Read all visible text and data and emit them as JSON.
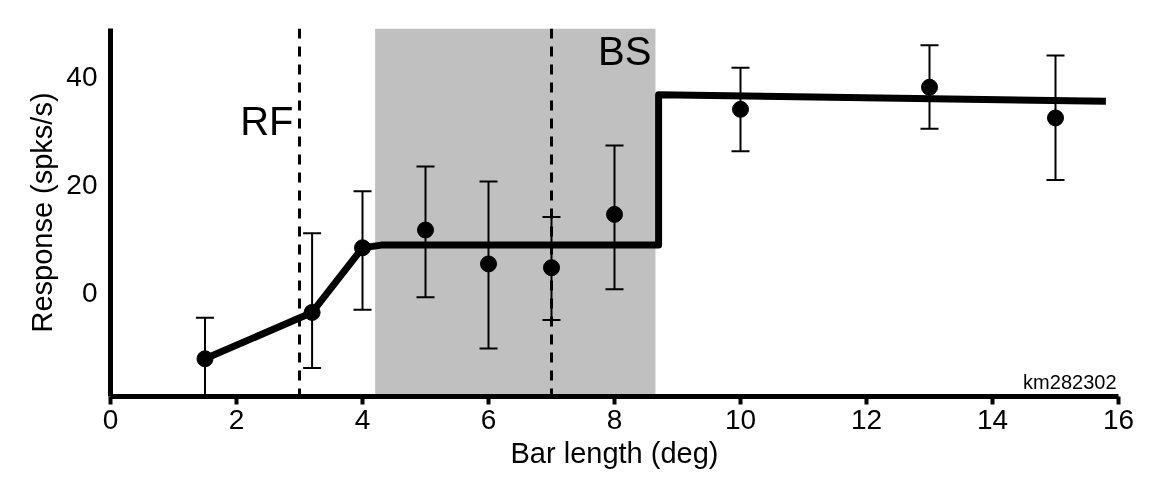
{
  "chart_data": {
    "type": "scatter",
    "xlabel": "Bar length (deg)",
    "ylabel": "Response (spks/s)",
    "xlim": [
      0,
      16
    ],
    "ylim": [
      -19.3,
      49
    ],
    "xticks": [
      0,
      2,
      4,
      6,
      8,
      10,
      12,
      14,
      16
    ],
    "yticks": [
      0,
      20,
      40
    ],
    "grid": false,
    "series": [
      {
        "color": "#000000",
        "marker": "circle",
        "x": [
          1.5,
          3.2,
          4,
          5,
          6,
          7,
          8,
          10,
          13,
          15
        ],
        "values": [
          -12.3,
          -3.7,
          8.3,
          11.6,
          5.3,
          4.6,
          14.5,
          34,
          38.1,
          32.4
        ],
        "errors": [
          [
            -19,
            -4.7
          ],
          [
            -14,
            11
          ],
          [
            -3.2,
            18.8
          ],
          [
            -0.9,
            23.4
          ],
          [
            -10.4,
            20.6
          ],
          [
            -5.1,
            14
          ],
          [
            0.6,
            27.3
          ],
          [
            26.2,
            41.7
          ],
          [
            30.4,
            45.9
          ],
          [
            20.9,
            44
          ]
        ]
      },
      {
        "type": "line",
        "color": "#000000",
        "line_style": "solid",
        "x": [
          1.5,
          3.2,
          4,
          4.3,
          8.7,
          8.7,
          15.8
        ],
        "values": [
          -12.3,
          -3.7,
          8.3,
          8.8,
          8.8,
          36.7,
          35.5
        ]
      }
    ],
    "bands": [
      {
        "axis": "x",
        "from": 4.2,
        "to": 8.65,
        "label": "BS",
        "color": "#c0c0c0"
      }
    ],
    "ref_lines": [
      {
        "axis": "x",
        "value": 3,
        "label": "RF",
        "color": "#000000",
        "line_style": "dashed"
      },
      {
        "axis": "x",
        "value": 7,
        "color": "#000000",
        "line_style": "dashed"
      }
    ],
    "annotations": [
      "km282302"
    ]
  }
}
